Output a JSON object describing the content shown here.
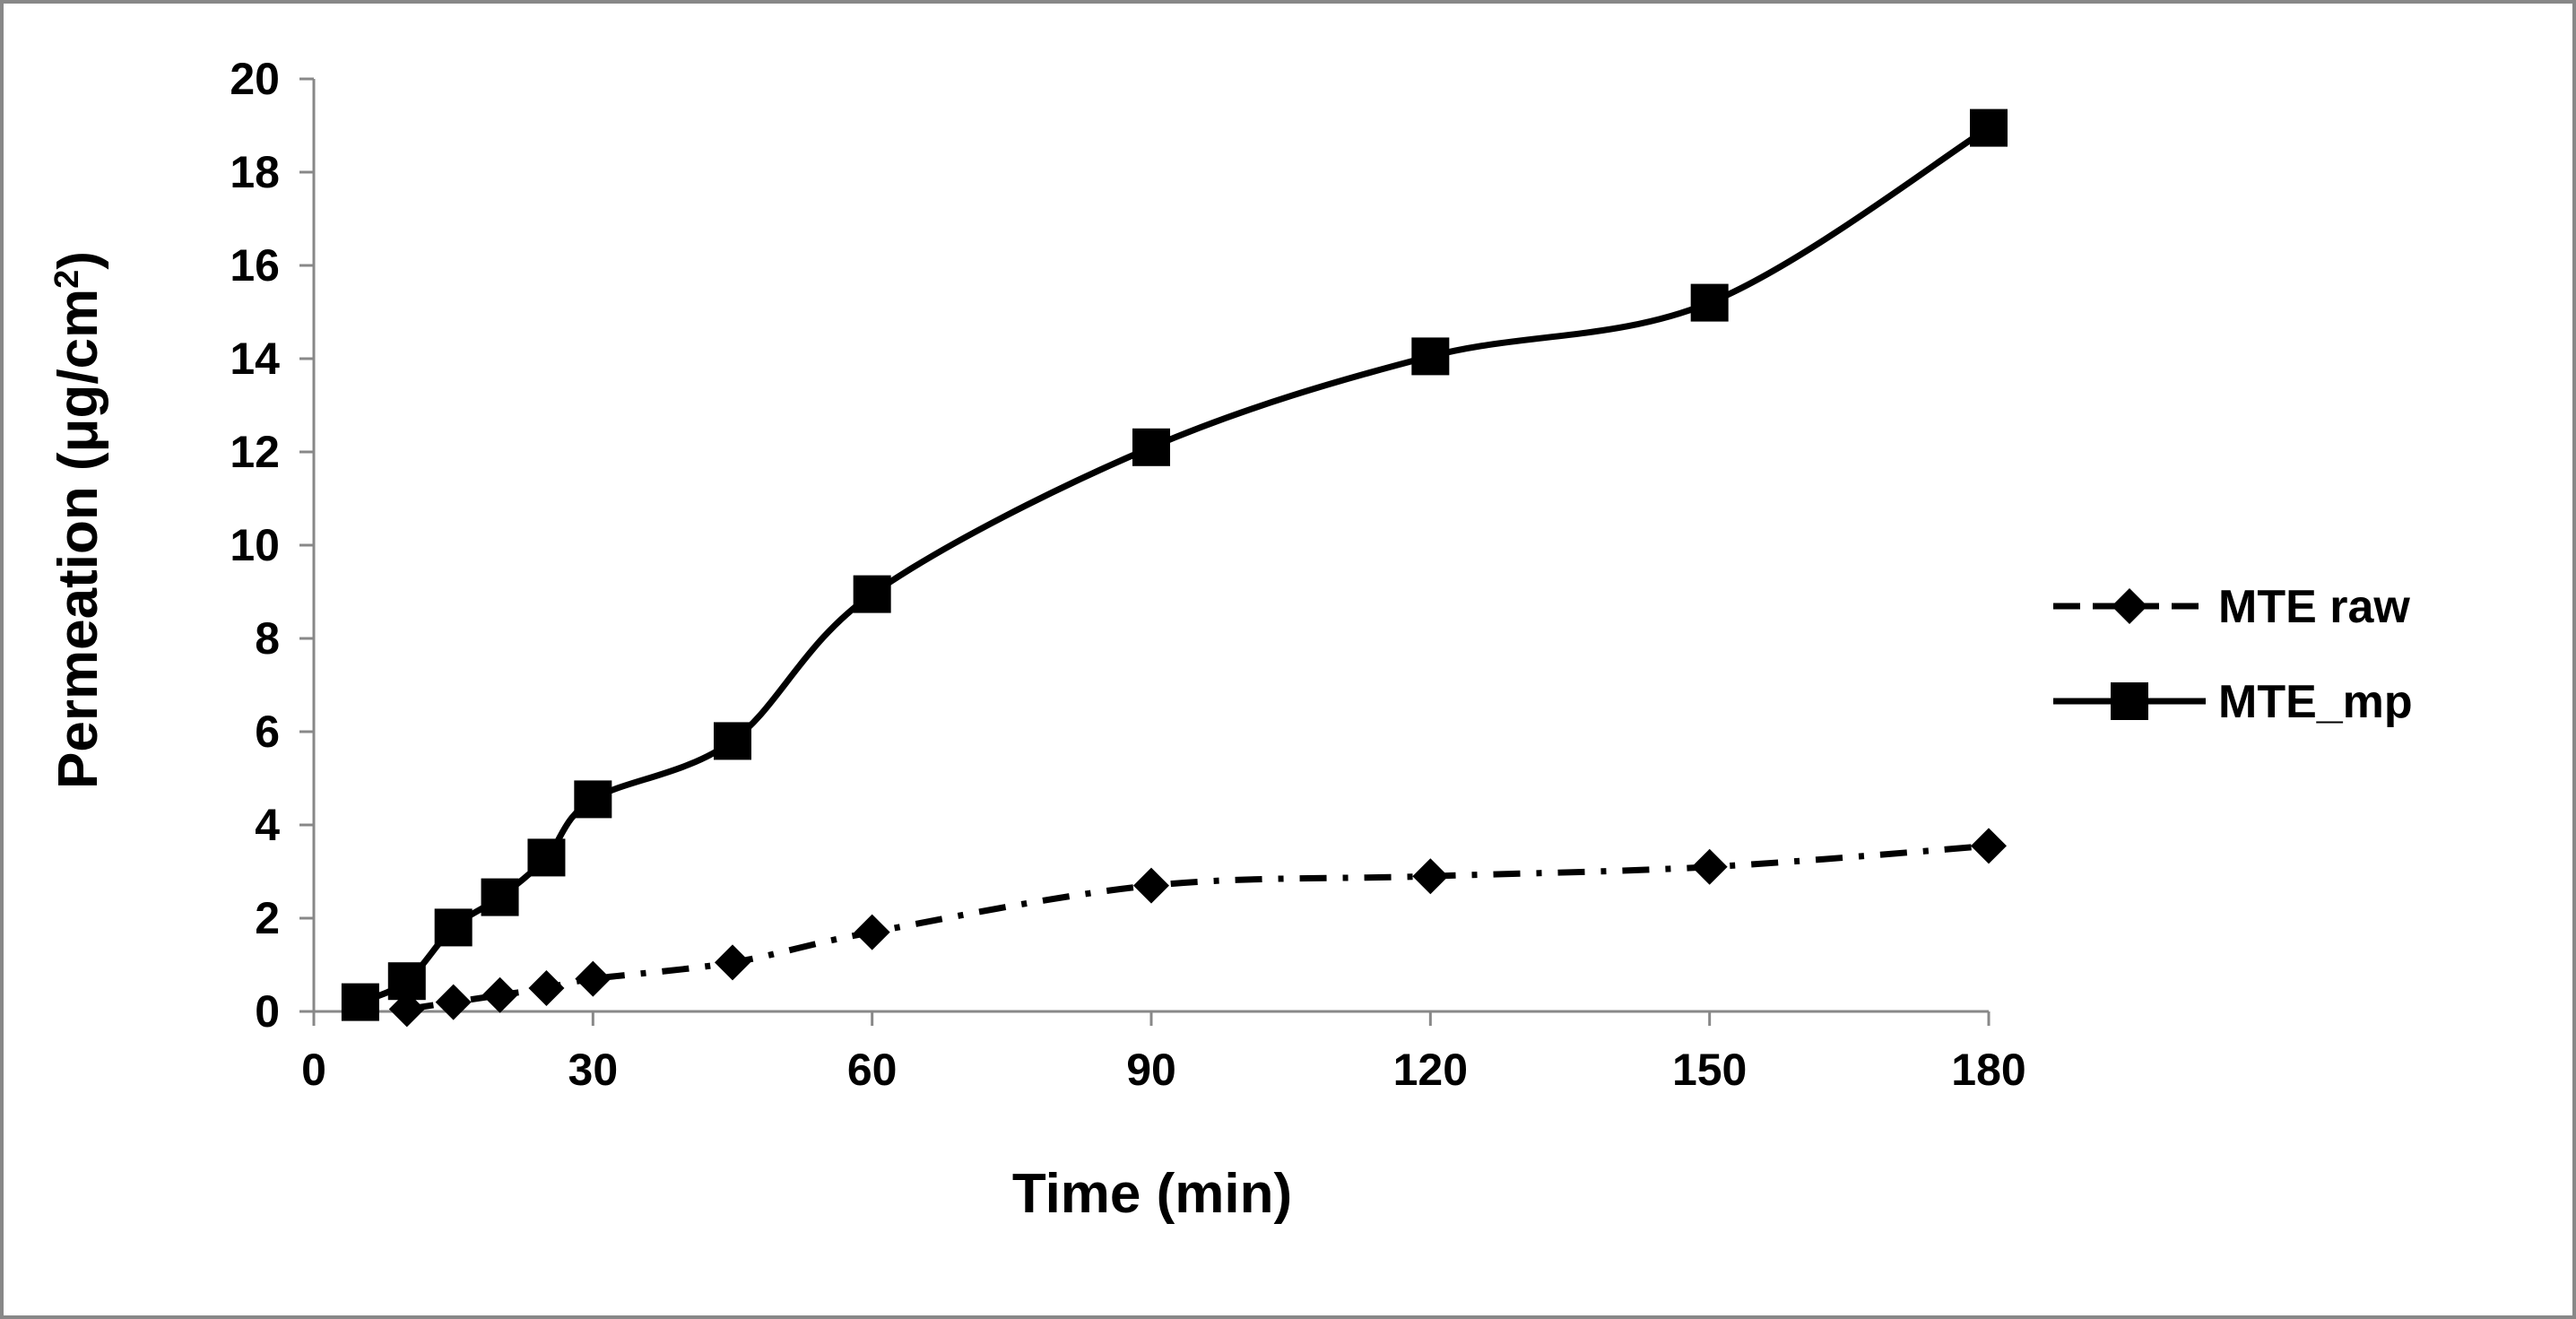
{
  "chart_data": {
    "type": "line",
    "title": "",
    "xlabel": "Time (min)",
    "ylabel_prefix": "Permeation (",
    "ylabel_unit_base": "μg/cm",
    "ylabel_unit_sup": "2",
    "ylabel_suffix": ")",
    "xlim": [
      0,
      180
    ],
    "ylim": [
      0,
      20
    ],
    "xticks": [
      0,
      30,
      60,
      90,
      120,
      150,
      180
    ],
    "yticks": [
      0,
      2,
      4,
      6,
      8,
      10,
      12,
      14,
      16,
      18,
      20
    ],
    "grid": false,
    "legend_position": "right",
    "series": [
      {
        "name": "MTE raw",
        "line_style": "dash-dot",
        "marker": "diamond",
        "color": "#000000",
        "x": [
          10,
          15,
          20,
          25,
          30,
          45,
          60,
          90,
          120,
          150,
          180
        ],
        "y": [
          0.05,
          0.2,
          0.35,
          0.5,
          0.7,
          1.05,
          1.7,
          2.7,
          2.9,
          3.1,
          3.55
        ]
      },
      {
        "name": "MTE_mp",
        "line_style": "solid",
        "marker": "square",
        "color": "#000000",
        "x": [
          5,
          10,
          15,
          20,
          25,
          30,
          45,
          60,
          90,
          120,
          150,
          180
        ],
        "y": [
          0.2,
          0.65,
          1.8,
          2.45,
          3.3,
          4.55,
          5.8,
          8.95,
          12.1,
          14.05,
          15.2,
          18.95
        ]
      }
    ]
  }
}
